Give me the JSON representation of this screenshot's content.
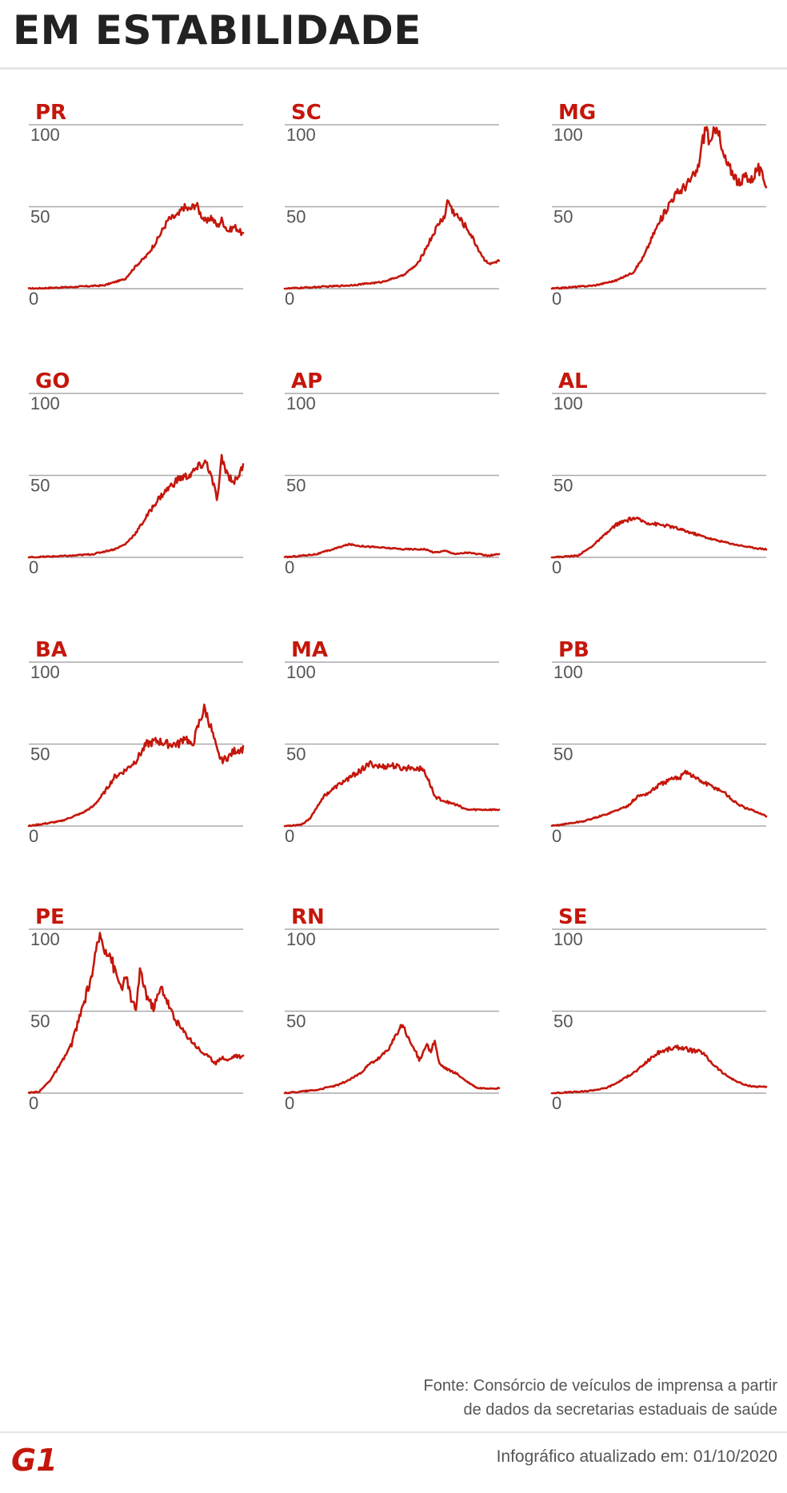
{
  "title": "EM ESTABILIDADE",
  "footer": {
    "source_line1": "Fonte: Consórcio de veículos de imprensa a partir",
    "source_line2": "de dados da secretarias estaduais de saúde",
    "updated": "Infográfico atualizado em: 01/10/2020",
    "logo_text": "G1"
  },
  "colors": {
    "series": "#c4170c",
    "grid": "#aaaaaa",
    "title": "#222222"
  },
  "chart_data": [
    {
      "type": "line",
      "title": "PR",
      "ylim": [
        0,
        100
      ],
      "yticks": [
        "100",
        "50",
        "0"
      ],
      "grid": true,
      "anchors": [
        [
          0,
          0
        ],
        [
          0.2,
          1
        ],
        [
          0.35,
          2
        ],
        [
          0.45,
          6
        ],
        [
          0.5,
          14
        ],
        [
          0.55,
          20
        ],
        [
          0.6,
          30
        ],
        [
          0.65,
          42
        ],
        [
          0.7,
          45
        ],
        [
          0.72,
          50
        ],
        [
          0.75,
          48
        ],
        [
          0.78,
          52
        ],
        [
          0.8,
          46
        ],
        [
          0.83,
          40
        ],
        [
          0.85,
          44
        ],
        [
          0.88,
          38
        ],
        [
          0.9,
          42
        ],
        [
          0.93,
          35
        ],
        [
          0.96,
          38
        ],
        [
          1,
          33
        ]
      ]
    },
    {
      "type": "line",
      "title": "SC",
      "ylim": [
        0,
        100
      ],
      "yticks": [
        "100",
        "50",
        "0"
      ],
      "grid": true,
      "anchors": [
        [
          0,
          0
        ],
        [
          0.3,
          2
        ],
        [
          0.45,
          4
        ],
        [
          0.55,
          8
        ],
        [
          0.62,
          15
        ],
        [
          0.68,
          30
        ],
        [
          0.72,
          40
        ],
        [
          0.75,
          45
        ],
        [
          0.76,
          55
        ],
        [
          0.78,
          48
        ],
        [
          0.82,
          42
        ],
        [
          0.86,
          35
        ],
        [
          0.9,
          25
        ],
        [
          0.93,
          18
        ],
        [
          0.96,
          15
        ],
        [
          1,
          17
        ]
      ]
    },
    {
      "type": "line",
      "title": "MG",
      "ylim": [
        0,
        100
      ],
      "yticks": [
        "100",
        "50",
        "0"
      ],
      "grid": true,
      "anchors": [
        [
          0,
          0
        ],
        [
          0.2,
          2
        ],
        [
          0.3,
          5
        ],
        [
          0.38,
          10
        ],
        [
          0.43,
          20
        ],
        [
          0.48,
          35
        ],
        [
          0.52,
          45
        ],
        [
          0.56,
          55
        ],
        [
          0.6,
          60
        ],
        [
          0.64,
          65
        ],
        [
          0.68,
          72
        ],
        [
          0.7,
          88
        ],
        [
          0.72,
          100
        ],
        [
          0.74,
          86
        ],
        [
          0.77,
          103
        ],
        [
          0.79,
          85
        ],
        [
          0.82,
          75
        ],
        [
          0.85,
          70
        ],
        [
          0.88,
          62
        ],
        [
          0.9,
          70
        ],
        [
          0.93,
          66
        ],
        [
          0.96,
          74
        ],
        [
          1,
          64
        ]
      ]
    },
    {
      "type": "line",
      "title": "GO",
      "ylim": [
        0,
        100
      ],
      "yticks": [
        "100",
        "50",
        "0"
      ],
      "grid": true,
      "anchors": [
        [
          0,
          0
        ],
        [
          0.2,
          1
        ],
        [
          0.3,
          2
        ],
        [
          0.4,
          5
        ],
        [
          0.45,
          8
        ],
        [
          0.5,
          15
        ],
        [
          0.55,
          25
        ],
        [
          0.6,
          35
        ],
        [
          0.65,
          42
        ],
        [
          0.7,
          48
        ],
        [
          0.75,
          50
        ],
        [
          0.8,
          56
        ],
        [
          0.83,
          58
        ],
        [
          0.86,
          45
        ],
        [
          0.88,
          35
        ],
        [
          0.9,
          60
        ],
        [
          0.93,
          50
        ],
        [
          0.96,
          46
        ],
        [
          1,
          55
        ]
      ]
    },
    {
      "type": "line",
      "title": "AP",
      "ylim": [
        0,
        100
      ],
      "yticks": [
        "100",
        "50",
        "0"
      ],
      "grid": true,
      "anchors": [
        [
          0,
          0
        ],
        [
          0.15,
          2
        ],
        [
          0.25,
          6
        ],
        [
          0.3,
          8
        ],
        [
          0.35,
          7
        ],
        [
          0.45,
          6
        ],
        [
          0.55,
          5
        ],
        [
          0.65,
          5
        ],
        [
          0.7,
          3
        ],
        [
          0.75,
          4
        ],
        [
          0.8,
          2
        ],
        [
          0.85,
          3
        ],
        [
          0.9,
          2
        ],
        [
          0.95,
          1
        ],
        [
          1,
          2
        ]
      ]
    },
    {
      "type": "line",
      "title": "AL",
      "ylim": [
        0,
        100
      ],
      "yticks": [
        "100",
        "50",
        "0"
      ],
      "grid": true,
      "anchors": [
        [
          0,
          0
        ],
        [
          0.12,
          1
        ],
        [
          0.18,
          6
        ],
        [
          0.25,
          14
        ],
        [
          0.3,
          20
        ],
        [
          0.38,
          24
        ],
        [
          0.45,
          21
        ],
        [
          0.55,
          19
        ],
        [
          0.65,
          15
        ],
        [
          0.75,
          11
        ],
        [
          0.85,
          8
        ],
        [
          0.93,
          6
        ],
        [
          1,
          5
        ]
      ]
    },
    {
      "type": "line",
      "title": "BA",
      "ylim": [
        0,
        100
      ],
      "yticks": [
        "100",
        "50",
        "0"
      ],
      "grid": true,
      "anchors": [
        [
          0,
          0
        ],
        [
          0.15,
          3
        ],
        [
          0.25,
          8
        ],
        [
          0.3,
          12
        ],
        [
          0.35,
          20
        ],
        [
          0.4,
          30
        ],
        [
          0.45,
          34
        ],
        [
          0.5,
          40
        ],
        [
          0.55,
          50
        ],
        [
          0.6,
          52
        ],
        [
          0.65,
          50
        ],
        [
          0.7,
          50
        ],
        [
          0.73,
          55
        ],
        [
          0.76,
          48
        ],
        [
          0.8,
          65
        ],
        [
          0.82,
          72
        ],
        [
          0.85,
          60
        ],
        [
          0.88,
          45
        ],
        [
          0.9,
          40
        ],
        [
          0.93,
          42
        ],
        [
          0.96,
          46
        ],
        [
          1,
          47
        ]
      ]
    },
    {
      "type": "line",
      "title": "MA",
      "ylim": [
        0,
        100
      ],
      "yticks": [
        "100",
        "50",
        "0"
      ],
      "grid": true,
      "anchors": [
        [
          0,
          0
        ],
        [
          0.08,
          1
        ],
        [
          0.12,
          5
        ],
        [
          0.18,
          18
        ],
        [
          0.25,
          25
        ],
        [
          0.32,
          31
        ],
        [
          0.4,
          38
        ],
        [
          0.45,
          36
        ],
        [
          0.5,
          37
        ],
        [
          0.55,
          35
        ],
        [
          0.6,
          36
        ],
        [
          0.65,
          34
        ],
        [
          0.68,
          25
        ],
        [
          0.7,
          18
        ],
        [
          0.75,
          15
        ],
        [
          0.8,
          13
        ],
        [
          0.85,
          10
        ],
        [
          0.9,
          10
        ],
        [
          1,
          10
        ]
      ]
    },
    {
      "type": "line",
      "title": "PB",
      "ylim": [
        0,
        100
      ],
      "yticks": [
        "100",
        "50",
        "0"
      ],
      "grid": true,
      "anchors": [
        [
          0,
          0
        ],
        [
          0.15,
          3
        ],
        [
          0.25,
          7
        ],
        [
          0.35,
          12
        ],
        [
          0.4,
          18
        ],
        [
          0.45,
          20
        ],
        [
          0.5,
          25
        ],
        [
          0.55,
          28
        ],
        [
          0.6,
          30
        ],
        [
          0.62,
          34
        ],
        [
          0.65,
          31
        ],
        [
          0.7,
          27
        ],
        [
          0.75,
          24
        ],
        [
          0.8,
          21
        ],
        [
          0.85,
          15
        ],
        [
          0.9,
          11
        ],
        [
          0.95,
          9
        ],
        [
          1,
          6
        ]
      ]
    },
    {
      "type": "line",
      "title": "PE",
      "ylim": [
        0,
        100
      ],
      "yticks": [
        "100",
        "50",
        "0"
      ],
      "grid": true,
      "anchors": [
        [
          0,
          0
        ],
        [
          0.05,
          1
        ],
        [
          0.1,
          8
        ],
        [
          0.15,
          18
        ],
        [
          0.2,
          30
        ],
        [
          0.25,
          52
        ],
        [
          0.3,
          75
        ],
        [
          0.33,
          97
        ],
        [
          0.35,
          90
        ],
        [
          0.38,
          85
        ],
        [
          0.4,
          75
        ],
        [
          0.43,
          65
        ],
        [
          0.46,
          70
        ],
        [
          0.48,
          55
        ],
        [
          0.5,
          52
        ],
        [
          0.52,
          75
        ],
        [
          0.55,
          60
        ],
        [
          0.58,
          52
        ],
        [
          0.62,
          65
        ],
        [
          0.65,
          55
        ],
        [
          0.68,
          45
        ],
        [
          0.72,
          38
        ],
        [
          0.76,
          32
        ],
        [
          0.8,
          26
        ],
        [
          0.84,
          22
        ],
        [
          0.87,
          18
        ],
        [
          0.9,
          22
        ],
        [
          0.93,
          20
        ],
        [
          0.96,
          23
        ],
        [
          1,
          22
        ]
      ]
    },
    {
      "type": "line",
      "title": "RN",
      "ylim": [
        0,
        100
      ],
      "yticks": [
        "100",
        "50",
        "0"
      ],
      "grid": true,
      "anchors": [
        [
          0,
          0
        ],
        [
          0.15,
          2
        ],
        [
          0.25,
          5
        ],
        [
          0.3,
          8
        ],
        [
          0.35,
          12
        ],
        [
          0.4,
          18
        ],
        [
          0.45,
          22
        ],
        [
          0.5,
          30
        ],
        [
          0.53,
          38
        ],
        [
          0.55,
          42
        ],
        [
          0.58,
          32
        ],
        [
          0.6,
          28
        ],
        [
          0.63,
          20
        ],
        [
          0.66,
          30
        ],
        [
          0.68,
          25
        ],
        [
          0.7,
          32
        ],
        [
          0.72,
          18
        ],
        [
          0.75,
          15
        ],
        [
          0.8,
          12
        ],
        [
          0.85,
          7
        ],
        [
          0.9,
          3
        ],
        [
          0.95,
          3
        ],
        [
          1,
          3
        ]
      ]
    },
    {
      "type": "line",
      "title": "SE",
      "ylim": [
        0,
        100
      ],
      "yticks": [
        "100",
        "50",
        "0"
      ],
      "grid": true,
      "anchors": [
        [
          0,
          0
        ],
        [
          0.15,
          1
        ],
        [
          0.25,
          3
        ],
        [
          0.3,
          6
        ],
        [
          0.35,
          10
        ],
        [
          0.4,
          14
        ],
        [
          0.45,
          20
        ],
        [
          0.5,
          25
        ],
        [
          0.55,
          27
        ],
        [
          0.6,
          28
        ],
        [
          0.65,
          26
        ],
        [
          0.7,
          25
        ],
        [
          0.75,
          18
        ],
        [
          0.8,
          12
        ],
        [
          0.85,
          8
        ],
        [
          0.9,
          5
        ],
        [
          0.95,
          4
        ],
        [
          1,
          4
        ]
      ]
    }
  ]
}
